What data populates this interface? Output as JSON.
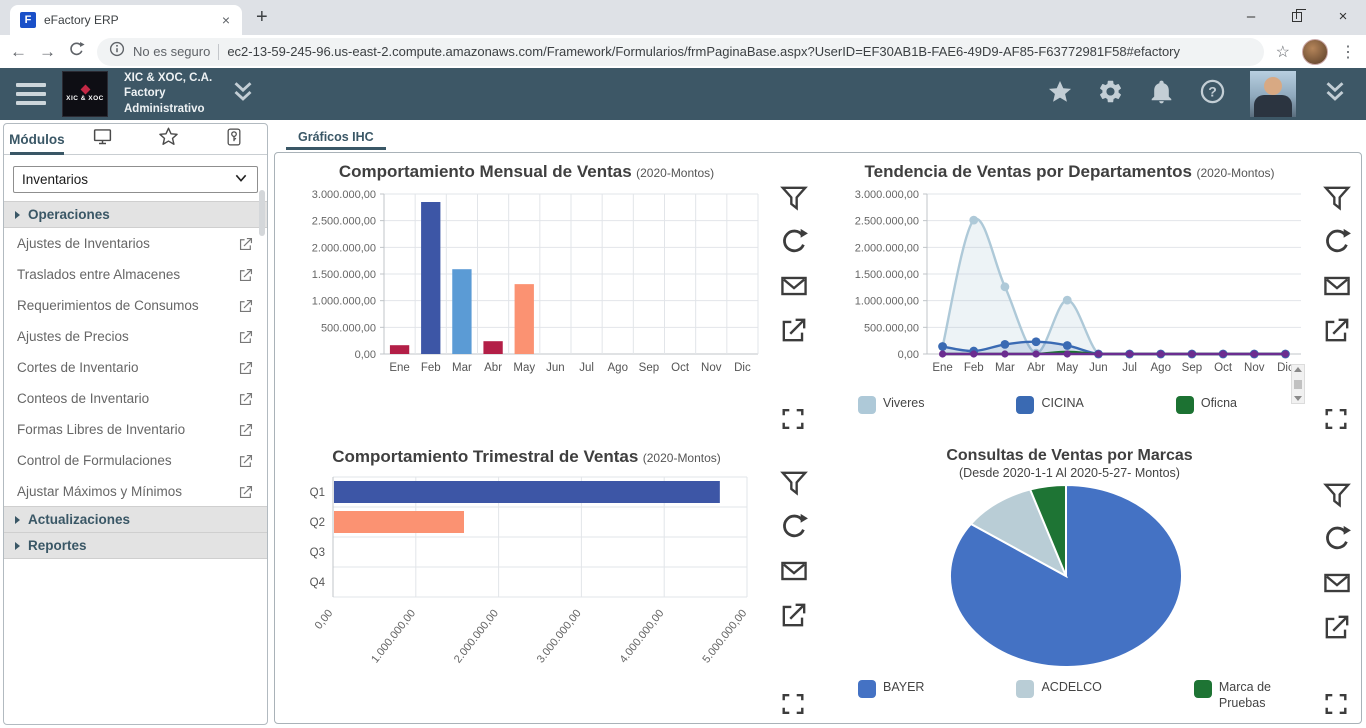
{
  "browser": {
    "tab": {
      "favicon_letter": "F",
      "title": "eFactory ERP",
      "close_glyph": "×",
      "new_tab_glyph": "+"
    },
    "nav": {
      "back_glyph": "←",
      "forward_glyph": "→"
    },
    "window": {
      "minimize_glyph": "–",
      "close_glyph": "×"
    },
    "url": {
      "security": "No es seguro",
      "address": "ec2-13-59-245-96.us-east-2.compute.amazonaws.com/Framework/Formularios/frmPaginaBase.aspx?UserID=EF30AB1B-FAE6-49D9-AF85-F63772981F58#efactory"
    },
    "menu_dots_glyph": "⋮"
  },
  "header": {
    "logo_text": "XIC & XOC",
    "company": "XIC & XOC, C.A.",
    "app": "Factory",
    "role": "Administrativo"
  },
  "sidebar": {
    "active_tab": "Módulos",
    "module_dropdown": "Inventarios",
    "accordion": [
      {
        "type": "section",
        "label": "Operaciones"
      },
      {
        "type": "item",
        "label": "Ajustes de Inventarios"
      },
      {
        "type": "item",
        "label": "Traslados entre Almacenes"
      },
      {
        "type": "item",
        "label": "Requerimientos de Consumos"
      },
      {
        "type": "item",
        "label": "Ajustes de Precios"
      },
      {
        "type": "item",
        "label": "Cortes de Inventario"
      },
      {
        "type": "item",
        "label": "Conteos de Inventario"
      },
      {
        "type": "item",
        "label": "Formas Libres de Inventario"
      },
      {
        "type": "item",
        "label": "Control de Formulaciones"
      },
      {
        "type": "item",
        "label": "Ajustar Máximos y Mínimos"
      },
      {
        "type": "section",
        "label": "Actualizaciones"
      },
      {
        "type": "section",
        "label": "Reportes"
      }
    ]
  },
  "main": {
    "tab_label": "Gráficos IHC"
  },
  "chart_data": [
    {
      "type": "bar",
      "title": "Comportamiento Mensual de Ventas",
      "subtitle": "(2020-Montos)",
      "categories": [
        "Ene",
        "Feb",
        "Mar",
        "Abr",
        "May",
        "Jun",
        "Jul",
        "Ago",
        "Sep",
        "Oct",
        "Nov",
        "Dic"
      ],
      "values": [
        165000,
        2850000,
        1590000,
        240000,
        1310000,
        0,
        0,
        0,
        0,
        0,
        0,
        0
      ],
      "bar_colors": [
        "#b31f47",
        "#3d56a6",
        "#5b9bd5",
        "#b31f47",
        "#fb9272",
        "#cccccc",
        "#cccccc",
        "#cccccc",
        "#cccccc",
        "#cccccc",
        "#cccccc",
        "#cccccc"
      ],
      "ylim": [
        0,
        3000000
      ],
      "ytick_values": [
        0,
        500000,
        1000000,
        1500000,
        2000000,
        2500000,
        3000000
      ],
      "ytick_labels": [
        "0,00",
        "500.000,00",
        "1.000.000,00",
        "1.500.000,00",
        "2.000.000,00",
        "2.500.000,00",
        "3.000.000,00"
      ],
      "grid": true,
      "legend_position": "none"
    },
    {
      "type": "line",
      "title": "Tendencia de Ventas por Departamentos",
      "subtitle": "(2020-Montos)",
      "categories": [
        "Ene",
        "Feb",
        "Mar",
        "Abr",
        "May",
        "Jun",
        "Jul",
        "Ago",
        "Sep",
        "Oct",
        "Nov",
        "Dic"
      ],
      "series": [
        {
          "name": "Viveres",
          "color": "#aec9d8",
          "area": true,
          "values": [
            140000,
            2510000,
            1260000,
            15000,
            1010000,
            0,
            0,
            0,
            0,
            0,
            0,
            0
          ]
        },
        {
          "name": "CICINA",
          "color": "#3a6ab3",
          "area": true,
          "values": [
            140000,
            55000,
            180000,
            230000,
            160000,
            0,
            0,
            0,
            0,
            0,
            0,
            0
          ]
        },
        {
          "name": "Oficna",
          "color": "#1c7232",
          "area": false,
          "values": [
            0,
            0,
            0,
            0,
            40000,
            0,
            0,
            0,
            0,
            0,
            0,
            0
          ]
        },
        {
          "name": "",
          "color": "#6b2d90",
          "area": false,
          "values": [
            0,
            0,
            0,
            0,
            0,
            0,
            0,
            0,
            0,
            0,
            0,
            0
          ]
        }
      ],
      "legend_visible": [
        "Viveres",
        "CICINA",
        "Oficna"
      ],
      "legend_position": "bottom",
      "ylim": [
        0,
        3000000
      ],
      "ytick_values": [
        0,
        500000,
        1000000,
        1500000,
        2000000,
        2500000,
        3000000
      ],
      "ytick_labels": [
        "0,00",
        "500.000,00",
        "1.000.000,00",
        "1.500.000,00",
        "2.000.000,00",
        "2.500.000,00",
        "3.000.000,00"
      ],
      "grid": true
    },
    {
      "type": "hbar",
      "title": "Comportamiento Trimestral de Ventas",
      "subtitle": "(2020-Montos)",
      "categories": [
        "Q1",
        "Q2",
        "Q3",
        "Q4"
      ],
      "values": [
        4660000,
        1570000,
        0,
        0
      ],
      "bar_colors": [
        "#3d56a6",
        "#fb9272",
        "#cccccc",
        "#cccccc"
      ],
      "xlim": [
        0,
        5000000
      ],
      "xtick_values": [
        0,
        1000000,
        2000000,
        3000000,
        4000000,
        5000000
      ],
      "xtick_labels": [
        "0,00",
        "1.000.000,00",
        "2.000.000,00",
        "3.000.000,00",
        "4.000.000,00",
        "5.000.000,00"
      ],
      "grid": true,
      "legend_position": "none"
    },
    {
      "type": "pie",
      "title": "Consultas de Ventas por Marcas",
      "subtitle": "(Desde 2020-1-1 Al 2020-5-27- Montos)",
      "labels": [
        "BAYER",
        "ACDELCO",
        "Marca de Pruebas"
      ],
      "values": [
        84.7,
        10.3,
        5.0
      ],
      "unit": "percent (estimated from pie angles)",
      "colors": [
        "#4472c4",
        "#b9cdd6",
        "#1e7434"
      ],
      "legend_position": "bottom"
    }
  ]
}
